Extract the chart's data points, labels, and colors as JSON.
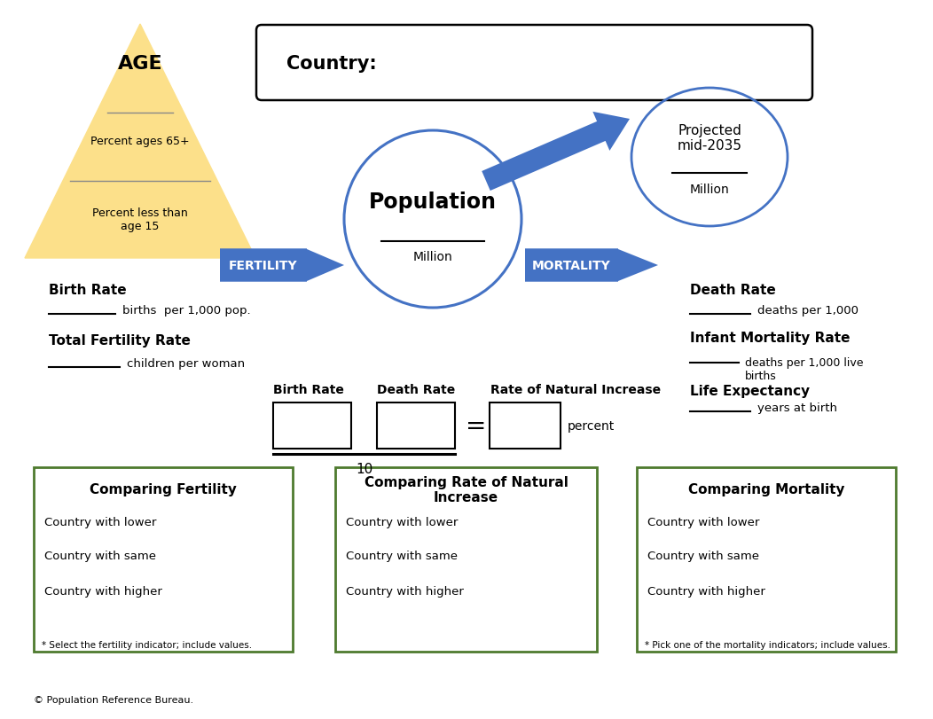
{
  "bg_color": "#ffffff",
  "pyramid_color": "#fce08a",
  "arrow_color": "#4472c4",
  "circle_color": "#4472c4",
  "box_border_color": "#4e7a2e",
  "country_box_color": "#000000",
  "title_age": "AGE",
  "text_65plus": "Percent ages 65+",
  "text_under15": "Percent less than\nage 15",
  "text_country": "Country:",
  "text_population": "Population",
  "text_million": "Million",
  "text_projected": "Projected\nmid-2035",
  "text_fertility": "FERTILITY",
  "text_mortality": "MORTALITY",
  "text_birth_rate": "Birth Rate",
  "text_birth_rate_unit": "births  per 1,000 pop.",
  "text_tfr": "Total Fertility Rate",
  "text_tfr_unit": "children per woman",
  "text_death_rate": "Death Rate",
  "text_death_rate_unit": "deaths per 1,000",
  "text_imr": "Infant Mortality Rate",
  "text_imr_unit": "deaths per 1,000 live\nbirths",
  "text_le": "Life Expectancy",
  "text_le_unit": "years at birth",
  "text_birth_rate_box": "Birth Rate",
  "text_death_rate_box": "Death Rate",
  "text_rni": "Rate of Natural Increase",
  "text_percent": "percent",
  "text_10": "10",
  "text_eq": "=",
  "box1_title": "Comparing Fertility",
  "box1_line1": "Country with lower",
  "box1_line2": "Country with same",
  "box1_line3": "Country with higher",
  "box1_note": "* Select the fertility indicator; include values.",
  "box2_title": "Comparing Rate of Natural\nIncrease",
  "box2_line1": "Country with lower",
  "box2_line2": "Country with same",
  "box2_line3": "Country with higher",
  "box3_title": "Comparing Mortality",
  "box3_line1": "Country with lower",
  "box3_line2": "Country with same",
  "box3_line3": "Country with higher",
  "box3_note": "* Pick one of the mortality indicators; include values.",
  "text_copyright": "© Population Reference Bureau."
}
